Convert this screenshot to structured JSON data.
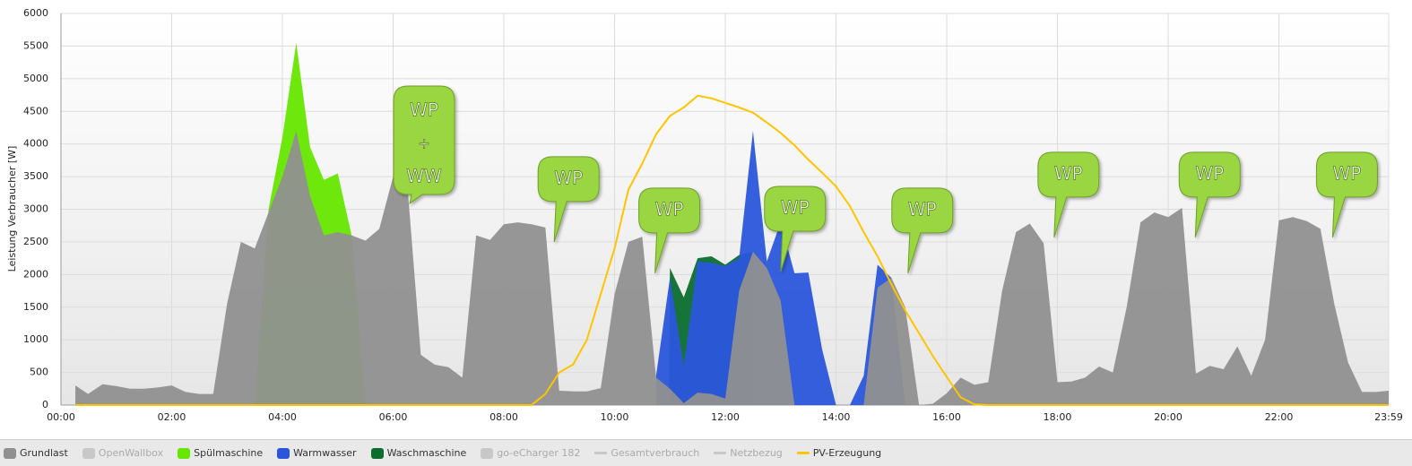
{
  "chart_data": {
    "type": "area",
    "y_label": "Leistung Verbraucher [W]",
    "xlim": [
      0,
      23.983
    ],
    "ylim": [
      0,
      6000
    ],
    "xticks": [
      {
        "value": 0,
        "label": "00:00"
      },
      {
        "value": 2,
        "label": "02:00"
      },
      {
        "value": 4,
        "label": "04:00"
      },
      {
        "value": 6,
        "label": "06:00"
      },
      {
        "value": 8,
        "label": "08:00"
      },
      {
        "value": 10,
        "label": "10:00"
      },
      {
        "value": 12,
        "label": "12:00"
      },
      {
        "value": 14,
        "label": "14:00"
      },
      {
        "value": 16,
        "label": "16:00"
      },
      {
        "value": 18,
        "label": "18:00"
      },
      {
        "value": 20,
        "label": "20:00"
      },
      {
        "value": 22,
        "label": "22:00"
      },
      {
        "value": 23.983,
        "label": "23:59"
      }
    ],
    "yticks": [
      0,
      500,
      1000,
      1500,
      2000,
      2500,
      3000,
      3500,
      4000,
      4500,
      5000,
      5500,
      6000
    ],
    "grid": true,
    "series": [
      {
        "name": "Grundlast",
        "type": "area",
        "color": "#909090",
        "visible": true,
        "x": [
          0.26,
          0.49,
          0.75,
          1,
          1.25,
          1.5,
          1.75,
          2,
          2.25,
          2.5,
          2.75,
          3,
          3.25,
          3.5,
          3.75,
          4,
          4.25,
          4.5,
          4.75,
          5,
          5.25,
          5.5,
          5.75,
          6,
          6.25,
          6.5,
          6.75,
          7,
          7.25,
          7.5,
          7.75,
          8,
          8.25,
          8.5,
          8.75,
          9,
          9.25,
          9.5,
          9.75,
          10,
          10.25,
          10.5,
          10.75,
          11,
          11.25,
          11.5,
          11.75,
          12,
          12.25,
          12.5,
          12.75,
          13,
          13.25,
          14.5,
          14.75,
          15,
          15.25,
          15.5,
          15.75,
          16,
          16.25,
          16.5,
          16.75,
          17,
          17.25,
          17.5,
          17.75,
          18,
          18.25,
          18.5,
          18.75,
          19,
          19.25,
          19.5,
          19.75,
          20,
          20.25,
          20.5,
          20.75,
          21,
          21.25,
          21.5,
          21.75,
          22,
          22.25,
          22.5,
          22.75,
          23,
          23.25,
          23.5,
          23.75,
          23.983
        ],
        "values": [
          300,
          170,
          320,
          290,
          250,
          250,
          270,
          300,
          200,
          170,
          170,
          1550,
          2500,
          2400,
          2950,
          3500,
          4200,
          3200,
          2600,
          2650,
          2600,
          2520,
          2700,
          3500,
          3450,
          770,
          620,
          580,
          420,
          2600,
          2530,
          2770,
          2800,
          2770,
          2720,
          220,
          210,
          210,
          260,
          1700,
          2500,
          2580,
          420,
          250,
          30,
          190,
          170,
          100,
          1750,
          2350,
          2100,
          1600,
          0,
          0,
          1800,
          1950,
          1500,
          0,
          20,
          180,
          420,
          310,
          350,
          1750,
          2650,
          2780,
          2480,
          350,
          360,
          420,
          590,
          500,
          1500,
          2800,
          2950,
          2880,
          3020,
          480,
          600,
          550,
          900,
          450,
          1000,
          2830,
          2880,
          2820,
          2700,
          1550,
          650,
          200,
          200,
          220
        ]
      },
      {
        "name": "OpenWallbox",
        "type": "area",
        "color": "#c8c8c8",
        "visible": false
      },
      {
        "name": "Spülmaschine",
        "type": "area",
        "color": "#66e600",
        "visible": true,
        "x": [
          3.5,
          3.75,
          4,
          4.25,
          4.5,
          4.75,
          5,
          5.25,
          5.5
        ],
        "values": [
          0,
          3000,
          4100,
          5550,
          3950,
          3450,
          3550,
          2600,
          0
        ]
      },
      {
        "name": "Warmwasser",
        "type": "area",
        "color": "#2b56dc",
        "visible": true,
        "x": [
          10.75,
          11,
          11.25,
          11.5,
          11.75,
          12,
          12.25,
          12.5,
          12.75,
          13,
          13.25,
          13.5,
          13.75,
          14,
          14.25,
          14.5,
          14.75,
          15,
          15.25
        ],
        "values": [
          450,
          1950,
          600,
          2200,
          2180,
          2130,
          2250,
          4200,
          2200,
          2800,
          2020,
          2030,
          850,
          0,
          0,
          450,
          2150,
          1950,
          0
        ]
      },
      {
        "name": "Waschmaschine",
        "type": "area",
        "color": "#0b6e2f",
        "visible": true,
        "x": [
          10.98,
          11,
          11.25,
          11.5,
          11.75,
          12,
          12.25,
          12.5
        ],
        "values": [
          0,
          2100,
          1650,
          2250,
          2280,
          2150,
          2300,
          2350
        ]
      },
      {
        "name": "go-eCharger 182",
        "type": "area",
        "color": "#c8c8c8",
        "visible": false
      },
      {
        "name": "Gesamtverbrauch",
        "type": "line",
        "color": "#c8c8c8",
        "visible": false
      },
      {
        "name": "Netzbezug",
        "type": "line",
        "color": "#c8c8c8",
        "visible": false
      },
      {
        "name": "PV-Erzeugung",
        "type": "line",
        "color": "#ffc400",
        "visible": true,
        "x": [
          0.26,
          8.5,
          8.75,
          9,
          9.25,
          9.5,
          9.75,
          10,
          10.25,
          10.5,
          10.75,
          11,
          11.25,
          11.5,
          11.75,
          12,
          12.25,
          12.5,
          12.75,
          13,
          13.25,
          13.5,
          13.75,
          14,
          14.25,
          14.5,
          14.75,
          15,
          15.25,
          15.5,
          15.75,
          16,
          16.25,
          16.5,
          16.75,
          23.983
        ],
        "values": [
          0,
          0,
          170,
          500,
          620,
          1000,
          1700,
          2400,
          3300,
          3700,
          4150,
          4430,
          4560,
          4740,
          4700,
          4630,
          4560,
          4480,
          4330,
          4170,
          3980,
          3760,
          3560,
          3350,
          3050,
          2650,
          2280,
          1850,
          1450,
          1100,
          750,
          430,
          120,
          10,
          0,
          0
        ]
      }
    ],
    "draw_order": [
      2,
      4,
      3,
      0,
      8
    ],
    "annotations": [
      {
        "text": [
          "WP",
          "+",
          "WW"
        ],
        "x": 6.3,
        "y": 3090
      },
      {
        "text": [
          "WP"
        ],
        "x": 8.91,
        "y": 2500
      },
      {
        "text": [
          "WP"
        ],
        "x": 10.73,
        "y": 2020
      },
      {
        "text": [
          "WP"
        ],
        "x": 13.0,
        "y": 2045
      },
      {
        "text": [
          "WP"
        ],
        "x": 15.3,
        "y": 2020
      },
      {
        "text": [
          "WP"
        ],
        "x": 17.94,
        "y": 2570
      },
      {
        "text": [
          "WP"
        ],
        "x": 20.49,
        "y": 2570
      },
      {
        "text": [
          "WP"
        ],
        "x": 22.97,
        "y": 2570
      }
    ]
  }
}
